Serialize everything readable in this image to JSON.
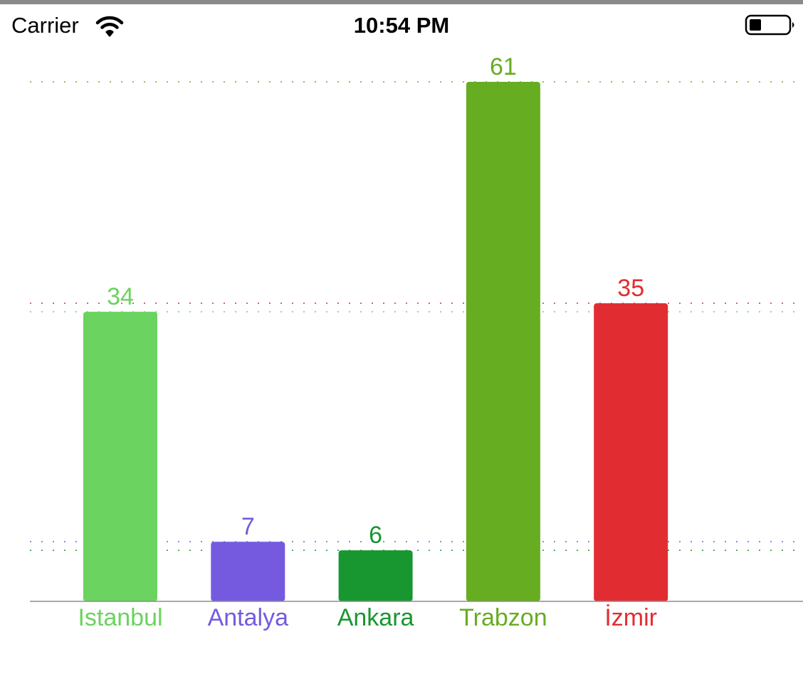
{
  "status_bar": {
    "carrier": "Carrier",
    "time": "10:54 PM",
    "wifi_icon": "wifi-icon",
    "battery_icon": "battery-icon",
    "battery_level": 0.3
  },
  "chart_data": {
    "type": "bar",
    "title": "",
    "xlabel": "",
    "ylabel": "",
    "ylim": [
      0,
      61
    ],
    "grid": false,
    "categories": [
      "Istanbul",
      "Antalya",
      "Ankara",
      "Trabzon",
      "İzmir"
    ],
    "values": [
      34,
      7,
      6,
      61,
      35
    ],
    "value_labels": [
      "34",
      "7",
      "6",
      "61",
      "35"
    ],
    "colors": [
      "#6bd35f",
      "#755ae0",
      "#18962f",
      "#66ad22",
      "#e12d32"
    ],
    "reference_lines": "dotted line at each bar's value, in the bar's color",
    "axis_color": "#8e8e8e"
  }
}
